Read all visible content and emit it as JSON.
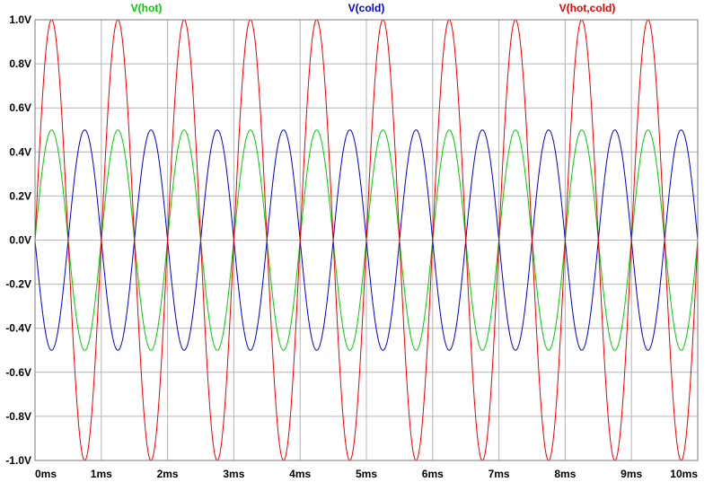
{
  "chart_data": {
    "type": "line",
    "title": "",
    "xlabel": "",
    "ylabel": "",
    "xlim": [
      0,
      10
    ],
    "ylim": [
      -1.0,
      1.0
    ],
    "grid": true,
    "legend_position": "top",
    "x_ticks": [
      0,
      1,
      2,
      3,
      4,
      5,
      6,
      7,
      8,
      9,
      10
    ],
    "x_tick_labels": [
      "0ms",
      "1ms",
      "2ms",
      "3ms",
      "4ms",
      "5ms",
      "6ms",
      "7ms",
      "8ms",
      "9ms",
      "10ms"
    ],
    "y_ticks": [
      1.0,
      0.8,
      0.6,
      0.4,
      0.2,
      0.0,
      -0.2,
      -0.4,
      -0.6,
      -0.8,
      -1.0
    ],
    "y_tick_labels": [
      "1.0V",
      "0.8V",
      "0.6V",
      "0.4V",
      "0.2V",
      "0.0V",
      "-0.2V",
      "-0.4V",
      "-0.6V",
      "-0.8V",
      "-1.0V"
    ],
    "series": [
      {
        "name": "V(hot)",
        "color": "#00cc00",
        "amplitude": 0.5,
        "frequency_khz": 1,
        "phase": "sine"
      },
      {
        "name": "V(cold)",
        "color": "#0000cc",
        "amplitude": 0.5,
        "frequency_khz": 1,
        "phase": "inverted-sine"
      },
      {
        "name": "V(hot,cold)",
        "color": "#ee0000",
        "amplitude": 1.0,
        "frequency_khz": 1,
        "phase": "sine"
      }
    ]
  }
}
